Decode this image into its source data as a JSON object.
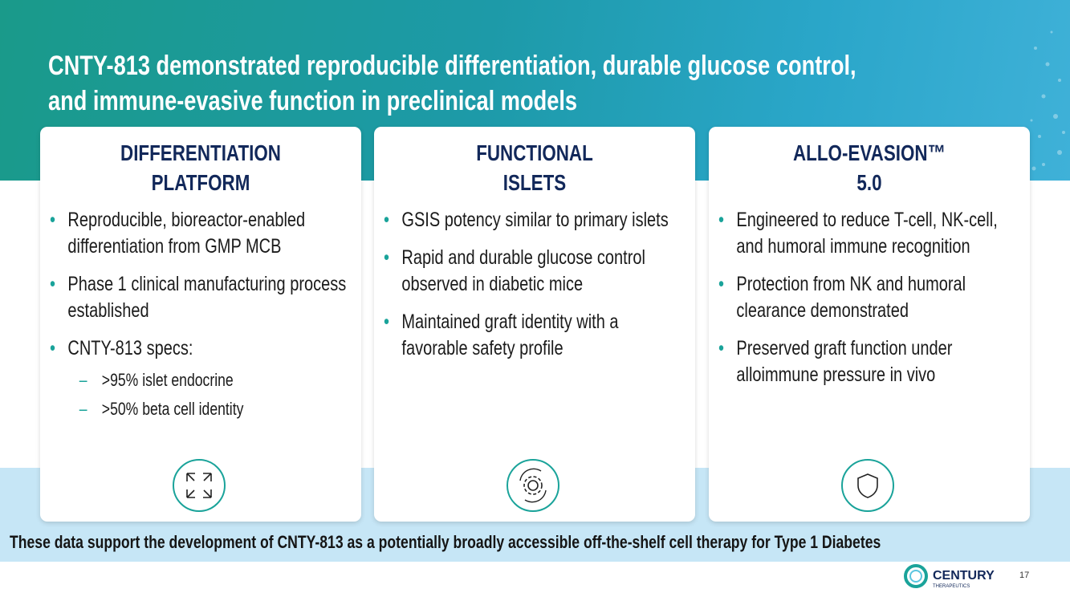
{
  "header": {
    "title": [
      "CNTY-813 demonstrated reproducible differentiation, durable glucose control,",
      "and immune-evasive function in preclinical models"
    ]
  },
  "cards": [
    {
      "heading": [
        "DIFFERENTIATION",
        "PLATFORM"
      ],
      "bullets": [
        {
          "text": "Reproducible, bioreactor-enabled differentiation from GMP MCB"
        },
        {
          "text": "Phase 1 clinical manufacturing process established"
        },
        {
          "text": "CNTY-813 specs:",
          "sub": [
            ">95% islet endocrine",
            ">50% beta cell identity"
          ]
        }
      ]
    },
    {
      "heading": [
        "FUNCTIONAL",
        "ISLETS"
      ],
      "bullets": [
        {
          "text": "GSIS potency similar to primary islets"
        },
        {
          "text": "Rapid and durable glucose control observed in diabetic mice"
        },
        {
          "text": "Maintained graft identity with a favorable safety profile"
        }
      ]
    },
    {
      "heading": [
        "ALLO-EVASION™",
        "5.0"
      ],
      "bullets": [
        {
          "text": "Engineered to reduce T-cell, NK-cell, and humoral immune recognition"
        },
        {
          "text": "Protection from NK and humoral clearance demonstrated"
        },
        {
          "text": "Preserved graft function under alloimmune pressure in vivo"
        }
      ]
    }
  ],
  "footer": {
    "statement": "These data support the development of CNTY-813 as a potentially broadly accessible off-the-shelf cell therapy for Type 1 Diabetes",
    "logo": "CENTURY",
    "logo_sub": "THERAPEUTICS",
    "page_number": "17"
  }
}
